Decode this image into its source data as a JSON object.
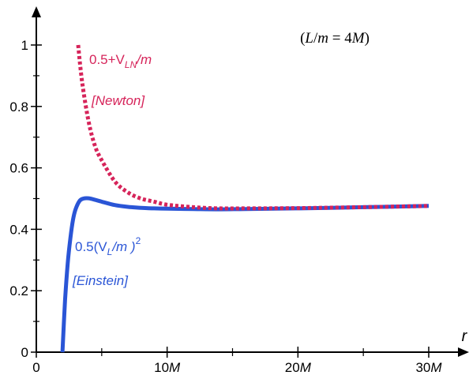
{
  "chart_data": {
    "type": "line",
    "xlabel": "r",
    "ylabel": "",
    "xlim": [
      0,
      30
    ],
    "ylim": [
      0,
      1.1
    ],
    "x_ticks": [
      {
        "value": 0,
        "label": "0"
      },
      {
        "value": 10,
        "label": "10M"
      },
      {
        "value": 20,
        "label": "20M"
      },
      {
        "value": 30,
        "label": "30M"
      }
    ],
    "x_minor_ticks": [
      5,
      15,
      25
    ],
    "y_ticks": [
      {
        "value": 0,
        "label": "0"
      },
      {
        "value": 0.2,
        "label": "0.2"
      },
      {
        "value": 0.4,
        "label": "0.4"
      },
      {
        "value": 0.6,
        "label": "0.6"
      },
      {
        "value": 0.8,
        "label": "0.8"
      },
      {
        "value": 1.0,
        "label": "1"
      }
    ],
    "y_minor_ticks": [
      0.1,
      0.3,
      0.5,
      0.7,
      0.9
    ],
    "annotation": "(L/m = 4M)",
    "grid": false,
    "series": [
      {
        "name": "0.5+VLN/m",
        "label_main": "0.5+V",
        "label_sub": "LN",
        "label_tail": "/m",
        "note": "[Newton]",
        "color": "#d6245a",
        "style": "dotted",
        "x": [
          3.2,
          3.5,
          4,
          4.5,
          5,
          6,
          7,
          8,
          9,
          10,
          12,
          14,
          16,
          20,
          25,
          30
        ],
        "values": [
          1.0,
          0.88,
          0.75,
          0.67,
          0.625,
          0.556,
          0.52,
          0.5,
          0.49,
          0.48,
          0.472,
          0.468,
          0.468,
          0.469,
          0.472,
          0.476
        ]
      },
      {
        "name": "0.5(VL/m)²",
        "label_main": "0.5(V",
        "label_sub": "L",
        "label_tail": "/m )",
        "label_sup": "2",
        "note": "[Einstein]",
        "color": "#2a55d6",
        "style": "solid",
        "x": [
          2.0,
          2.2,
          2.4,
          2.6,
          2.8,
          3.0,
          3.3,
          3.6,
          4.0,
          4.5,
          5,
          6,
          7,
          8,
          9,
          10,
          12,
          14,
          16,
          20,
          25,
          30
        ],
        "values": [
          0.0,
          0.17,
          0.29,
          0.37,
          0.43,
          0.465,
          0.492,
          0.5,
          0.501,
          0.496,
          0.49,
          0.479,
          0.473,
          0.47,
          0.468,
          0.467,
          0.466,
          0.465,
          0.466,
          0.468,
          0.472,
          0.476
        ]
      }
    ]
  },
  "colors": {
    "axis": "#000000",
    "newton": "#d6245a",
    "einstein": "#2a55d6"
  }
}
